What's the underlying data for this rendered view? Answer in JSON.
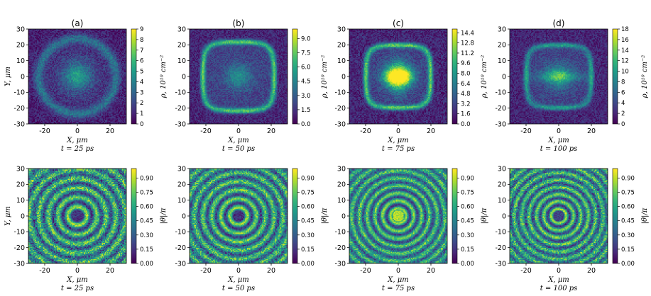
{
  "colors": {
    "viridis": [
      "#440154",
      "#482878",
      "#3e4989",
      "#31688e",
      "#26828e",
      "#1f9e89",
      "#35b779",
      "#6ece58",
      "#b5de2b",
      "#fde725"
    ]
  },
  "chart_data": [
    {
      "type": "heatmap",
      "row": "density",
      "title": "(a)",
      "xlabel": "X, μm",
      "ylabel": "Y, μm",
      "time_label": "t = 25 ps",
      "xlim": [
        -30,
        30
      ],
      "ylim": [
        -30,
        30
      ],
      "xticks": [
        -20,
        0,
        20
      ],
      "yticks": [
        -30,
        -20,
        -10,
        0,
        10,
        20,
        30
      ],
      "colorbar": {
        "label": "ρ, 10¹⁰ cm⁻²",
        "min": 0,
        "max": 9,
        "ticks": [
          "0",
          "1",
          "2",
          "3",
          "4",
          "5",
          "6",
          "7",
          "8",
          "9"
        ]
      },
      "features": {
        "core_intensity": 0.35,
        "ring_radius": 24,
        "noise": 0.22,
        "shape": "blob"
      }
    },
    {
      "type": "heatmap",
      "row": "density",
      "title": "(b)",
      "xlabel": "X, μm",
      "ylabel": "",
      "time_label": "t = 50 ps",
      "xlim": [
        -30,
        30
      ],
      "ylim": [
        -30,
        30
      ],
      "xticks": [
        -20,
        0,
        20
      ],
      "yticks": [
        -30,
        -20,
        -10,
        0,
        10,
        20,
        30
      ],
      "colorbar": {
        "label": "ρ, 10¹⁰ cm⁻²",
        "min": 0,
        "max": 10,
        "ticks": [
          "0.0",
          "1.5",
          "3.0",
          "4.5",
          "6.0",
          "7.5",
          "9.0"
        ]
      },
      "features": {
        "core_intensity": 0.3,
        "ring_radius": 22,
        "noise": 0.2,
        "shape": "square"
      }
    },
    {
      "type": "heatmap",
      "row": "density",
      "title": "(c)",
      "xlabel": "X, μm",
      "ylabel": "",
      "time_label": "t = 75 ps",
      "xlim": [
        -30,
        30
      ],
      "ylim": [
        -30,
        30
      ],
      "xticks": [
        -20,
        0,
        20
      ],
      "yticks": [
        -30,
        -20,
        -10,
        0,
        10,
        20,
        30
      ],
      "colorbar": {
        "label": "ρ, 10¹⁰ cm⁻²",
        "min": 0,
        "max": 15,
        "ticks": [
          "0.0",
          "1.6",
          "3.2",
          "4.8",
          "6.4",
          "8.0",
          "9.6",
          "11.2",
          "12.8",
          "14.4"
        ]
      },
      "features": {
        "core_intensity": 0.55,
        "ring_radius": 20,
        "noise": 0.22,
        "shape": "bowtie"
      }
    },
    {
      "type": "heatmap",
      "row": "density",
      "title": "(d)",
      "xlabel": "X, μm",
      "ylabel": "",
      "time_label": "t = 100 ps",
      "xlim": [
        -30,
        30
      ],
      "ylim": [
        -30,
        30
      ],
      "xticks": [
        -20,
        0,
        20
      ],
      "yticks": [
        -30,
        -20,
        -10,
        0,
        10,
        20,
        30
      ],
      "colorbar": {
        "label": "ρ, 10¹⁰ cm⁻²",
        "min": 0,
        "max": 18,
        "ticks": [
          "0",
          "2",
          "4",
          "6",
          "8",
          "10",
          "12",
          "14",
          "16",
          "18"
        ]
      },
      "features": {
        "core_intensity": 0.35,
        "ring_radius": 20,
        "noise": 0.2,
        "shape": "ring_bright"
      }
    },
    {
      "type": "heatmap",
      "row": "phase",
      "title": "",
      "xlabel": "X, μm",
      "ylabel": "Y, μm",
      "time_label": "t = 25 ps",
      "xlim": [
        -30,
        30
      ],
      "ylim": [
        -30,
        30
      ],
      "xticks": [
        -20,
        0,
        20
      ],
      "yticks": [
        -30,
        -20,
        -10,
        0,
        10,
        20,
        30
      ],
      "colorbar": {
        "label": "|θ|/π",
        "min": 0,
        "max": 1,
        "ticks": [
          "0.00",
          "0.15",
          "0.30",
          "0.45",
          "0.60",
          "0.75",
          "0.90"
        ]
      },
      "features": {
        "ring_period": 2.6,
        "phase_center": "dark",
        "noise": 0.35
      }
    },
    {
      "type": "heatmap",
      "row": "phase",
      "title": "",
      "xlabel": "X, μm",
      "ylabel": "",
      "time_label": "t = 50 ps",
      "xlim": [
        -30,
        30
      ],
      "ylim": [
        -30,
        30
      ],
      "xticks": [
        -20,
        0,
        20
      ],
      "yticks": [
        -30,
        -20,
        -10,
        0,
        10,
        20,
        30
      ],
      "colorbar": {
        "label": "|θ|/π",
        "min": 0,
        "max": 1,
        "ticks": [
          "0.00",
          "0.15",
          "0.30",
          "0.45",
          "0.60",
          "0.75",
          "0.90"
        ]
      },
      "features": {
        "ring_period": 2.4,
        "phase_center": "dark",
        "noise": 0.3
      }
    },
    {
      "type": "heatmap",
      "row": "phase",
      "title": "",
      "xlabel": "X, μm",
      "ylabel": "",
      "time_label": "t = 75 ps",
      "xlim": [
        -30,
        30
      ],
      "ylim": [
        -30,
        30
      ],
      "xticks": [
        -20,
        0,
        20
      ],
      "yticks": [
        -30,
        -20,
        -10,
        0,
        10,
        20,
        30
      ],
      "colorbar": {
        "label": "|θ|/π",
        "min": 0,
        "max": 1,
        "ticks": [
          "0.00",
          "0.15",
          "0.30",
          "0.45",
          "0.60",
          "0.75",
          "0.90"
        ]
      },
      "features": {
        "ring_period": 2.1,
        "phase_center": "bright",
        "noise": 0.25
      }
    },
    {
      "type": "heatmap",
      "row": "phase",
      "title": "",
      "xlabel": "X, μm",
      "ylabel": "",
      "time_label": "t = 100 ps",
      "xlim": [
        -30,
        30
      ],
      "ylim": [
        -30,
        30
      ],
      "xticks": [
        -20,
        0,
        20
      ],
      "yticks": [
        -30,
        -20,
        -10,
        0,
        10,
        20,
        30
      ],
      "colorbar": {
        "label": "|θ|/π",
        "min": 0,
        "max": 1,
        "ticks": [
          "0.00",
          "0.15",
          "0.30",
          "0.45",
          "0.60",
          "0.75",
          "0.90"
        ]
      },
      "features": {
        "ring_period": 2.0,
        "phase_center": "dark_blob",
        "noise": 0.3
      }
    }
  ]
}
